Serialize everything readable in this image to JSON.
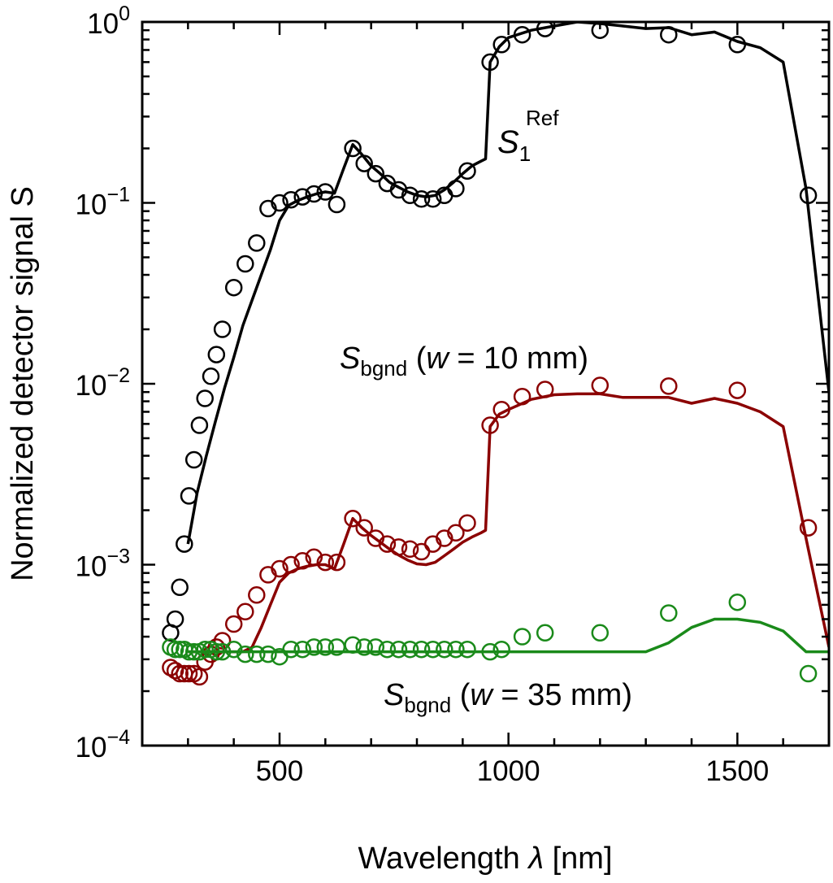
{
  "chart_data": {
    "type": "line",
    "xlabel": "Wavelength",
    "xlabel_symbol": "λ",
    "xlabel_unit": "[nm]",
    "ylabel": "Normalized detector signal S",
    "xlim": [
      200,
      1700
    ],
    "ylim": [
      0.0001,
      1
    ],
    "yscale": "log",
    "x_ticks": [
      500,
      1000,
      1500
    ],
    "y_tick_labels": [
      {
        "value": 1,
        "base": "10",
        "exp": "0"
      },
      {
        "value": 0.1,
        "base": "10",
        "exp": "−1"
      },
      {
        "value": 0.01,
        "base": "10",
        "exp": "−2"
      },
      {
        "value": 0.001,
        "base": "10",
        "exp": "−3"
      },
      {
        "value": 0.0001,
        "base": "10",
        "exp": "−4"
      }
    ],
    "annotations": {
      "ref": {
        "symbol": "S",
        "sub": "1",
        "sup": "Ref"
      },
      "bgnd10": {
        "symbol": "S",
        "sub": "bgnd",
        "paren_open": " (",
        "var": "w",
        "rest": " = 10 mm)"
      },
      "bgnd35": {
        "symbol": "S",
        "sub": "bgnd",
        "paren_open": " (",
        "var": "w",
        "rest": " = 35 mm)"
      }
    },
    "series": [
      {
        "name": "S1 Ref (model)",
        "kind": "line",
        "color": "#000000",
        "x": [
          300,
          320,
          340,
          360,
          380,
          400,
          420,
          440,
          460,
          480,
          500,
          520,
          540,
          560,
          580,
          600,
          620,
          640,
          660,
          680,
          700,
          720,
          740,
          760,
          780,
          800,
          820,
          840,
          860,
          880,
          900,
          920,
          940,
          950,
          960,
          980,
          1000,
          1050,
          1100,
          1150,
          1200,
          1250,
          1300,
          1350,
          1400,
          1450,
          1500,
          1550,
          1600,
          1650,
          1700
        ],
        "y": [
          0.0013,
          0.0025,
          0.004,
          0.0062,
          0.0095,
          0.014,
          0.021,
          0.029,
          0.04,
          0.055,
          0.08,
          0.097,
          0.103,
          0.108,
          0.112,
          0.115,
          0.113,
          0.155,
          0.21,
          0.185,
          0.16,
          0.145,
          0.13,
          0.122,
          0.115,
          0.11,
          0.108,
          0.11,
          0.118,
          0.13,
          0.145,
          0.16,
          0.17,
          0.175,
          0.6,
          0.73,
          0.82,
          0.9,
          0.95,
          1.0,
          0.98,
          0.95,
          0.92,
          0.93,
          0.85,
          0.88,
          0.78,
          0.72,
          0.6,
          0.12,
          0.009
        ]
      },
      {
        "name": "S1 Ref (measured)",
        "kind": "markers",
        "color": "#000000",
        "x": [
          262,
          272,
          282,
          292,
          302,
          313,
          325,
          337,
          350,
          362,
          375,
          400,
          425,
          450,
          475,
          500,
          525,
          550,
          575,
          600,
          625,
          660,
          685,
          710,
          735,
          760,
          785,
          810,
          835,
          860,
          885,
          910,
          960,
          985,
          1030,
          1080,
          1200,
          1350,
          1500,
          1655
        ],
        "y": [
          0.00042,
          0.0005,
          0.00075,
          0.0013,
          0.0024,
          0.0038,
          0.0059,
          0.0083,
          0.011,
          0.0145,
          0.02,
          0.034,
          0.046,
          0.06,
          0.093,
          0.1,
          0.104,
          0.108,
          0.112,
          0.115,
          0.098,
          0.2,
          0.165,
          0.145,
          0.128,
          0.118,
          0.11,
          0.105,
          0.105,
          0.11,
          0.12,
          0.15,
          0.6,
          0.75,
          0.85,
          0.92,
          0.9,
          0.85,
          0.75,
          0.11
        ]
      },
      {
        "name": "S bgnd (w = 10 mm) (model)",
        "kind": "line",
        "color": "#8b0000",
        "x": [
          300,
          350,
          400,
          420,
          440,
          460,
          480,
          500,
          520,
          540,
          560,
          580,
          600,
          620,
          640,
          660,
          680,
          700,
          720,
          740,
          760,
          780,
          800,
          820,
          840,
          860,
          880,
          900,
          920,
          940,
          950,
          960,
          980,
          1000,
          1050,
          1100,
          1150,
          1200,
          1250,
          1300,
          1350,
          1400,
          1450,
          1500,
          1550,
          1600,
          1650,
          1700
        ],
        "y": [
          0.00033,
          0.00033,
          0.00033,
          0.00033,
          0.00035,
          0.00045,
          0.0006,
          0.0008,
          0.0009,
          0.00095,
          0.00098,
          0.001,
          0.001,
          0.00095,
          0.0013,
          0.0018,
          0.0016,
          0.00145,
          0.00133,
          0.00122,
          0.00113,
          0.00106,
          0.00101,
          0.001,
          0.00103,
          0.00112,
          0.00122,
          0.00133,
          0.00142,
          0.0015,
          0.00155,
          0.0058,
          0.0068,
          0.0072,
          0.0082,
          0.0087,
          0.0088,
          0.0088,
          0.0084,
          0.0084,
          0.0084,
          0.0078,
          0.0083,
          0.0078,
          0.007,
          0.0058,
          0.0014,
          0.00035
        ]
      },
      {
        "name": "S bgnd (w = 10 mm) (measured)",
        "kind": "markers",
        "color": "#8b0000",
        "x": [
          262,
          272,
          282,
          292,
          302,
          313,
          325,
          337,
          350,
          362,
          375,
          400,
          425,
          450,
          475,
          500,
          525,
          550,
          575,
          600,
          625,
          660,
          685,
          710,
          735,
          760,
          785,
          810,
          835,
          860,
          885,
          910,
          960,
          985,
          1030,
          1080,
          1200,
          1350,
          1500,
          1655
        ],
        "y": [
          0.00027,
          0.00026,
          0.00025,
          0.00025,
          0.00025,
          0.00025,
          0.00024,
          0.00029,
          0.00032,
          0.00035,
          0.00038,
          0.00047,
          0.00055,
          0.00068,
          0.00088,
          0.00095,
          0.001,
          0.00105,
          0.0011,
          0.00103,
          0.00103,
          0.0018,
          0.0016,
          0.0014,
          0.0013,
          0.00125,
          0.00122,
          0.00118,
          0.0013,
          0.0014,
          0.0015,
          0.0017,
          0.0059,
          0.0072,
          0.0085,
          0.0093,
          0.0098,
          0.0097,
          0.0092,
          0.0016
        ]
      },
      {
        "name": "S bgnd (w = 35 mm) (model)",
        "kind": "line",
        "color": "#1a8a1a",
        "x": [
          300,
          1300,
          1350,
          1400,
          1450,
          1500,
          1550,
          1600,
          1650,
          1700
        ],
        "y": [
          0.00033,
          0.00033,
          0.00037,
          0.00045,
          0.0005,
          0.0005,
          0.00048,
          0.00043,
          0.00033,
          0.00033
        ]
      },
      {
        "name": "S bgnd (w = 35 mm) (measured)",
        "kind": "markers",
        "color": "#1a8a1a",
        "x": [
          262,
          272,
          282,
          292,
          302,
          313,
          325,
          337,
          350,
          362,
          375,
          400,
          425,
          450,
          475,
          500,
          525,
          550,
          575,
          600,
          625,
          660,
          685,
          710,
          735,
          760,
          785,
          810,
          835,
          860,
          885,
          910,
          960,
          985,
          1030,
          1080,
          1200,
          1350,
          1500,
          1655
        ],
        "y": [
          0.00035,
          0.00034,
          0.00034,
          0.00034,
          0.00033,
          0.00033,
          0.00033,
          0.00034,
          0.00034,
          0.00033,
          0.00033,
          0.00034,
          0.00032,
          0.00032,
          0.00032,
          0.00031,
          0.00034,
          0.00034,
          0.00035,
          0.00035,
          0.00035,
          0.00036,
          0.00035,
          0.00035,
          0.00034,
          0.00034,
          0.00034,
          0.00034,
          0.00034,
          0.00034,
          0.00034,
          0.00034,
          0.00033,
          0.00034,
          0.0004,
          0.00042,
          0.00042,
          0.00054,
          0.00062,
          0.00025
        ]
      }
    ]
  }
}
